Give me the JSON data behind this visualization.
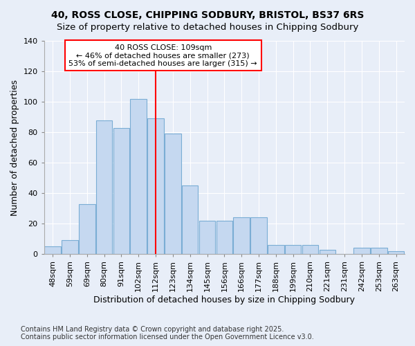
{
  "title_line1": "40, ROSS CLOSE, CHIPPING SODBURY, BRISTOL, BS37 6RS",
  "title_line2": "Size of property relative to detached houses in Chipping Sodbury",
  "xlabel": "Distribution of detached houses by size in Chipping Sodbury",
  "ylabel": "Number of detached properties",
  "footer": "Contains HM Land Registry data © Crown copyright and database right 2025.\nContains public sector information licensed under the Open Government Licence v3.0.",
  "categories": [
    "48sqm",
    "59sqm",
    "69sqm",
    "80sqm",
    "91sqm",
    "102sqm",
    "112sqm",
    "123sqm",
    "134sqm",
    "145sqm",
    "156sqm",
    "166sqm",
    "177sqm",
    "188sqm",
    "199sqm",
    "210sqm",
    "221sqm",
    "231sqm",
    "242sqm",
    "253sqm",
    "263sqm"
  ],
  "values": [
    5,
    9,
    33,
    88,
    83,
    102,
    89,
    79,
    45,
    22,
    22,
    24,
    24,
    6,
    6,
    6,
    3,
    0,
    4,
    4,
    2
  ],
  "bar_color": "#c5d8f0",
  "bar_edge_color": "#7aadd4",
  "vline_color": "red",
  "annotation_text": "40 ROSS CLOSE: 109sqm\n← 46% of detached houses are smaller (273)\n53% of semi-detached houses are larger (315) →",
  "annotation_box_color": "white",
  "annotation_box_edge": "red",
  "ylim": [
    0,
    140
  ],
  "yticks": [
    0,
    20,
    40,
    60,
    80,
    100,
    120,
    140
  ],
  "bg_color": "#e8eef8",
  "grid_color": "white",
  "title_fontsize": 10,
  "axis_label_fontsize": 9,
  "tick_fontsize": 8,
  "footer_fontsize": 7
}
